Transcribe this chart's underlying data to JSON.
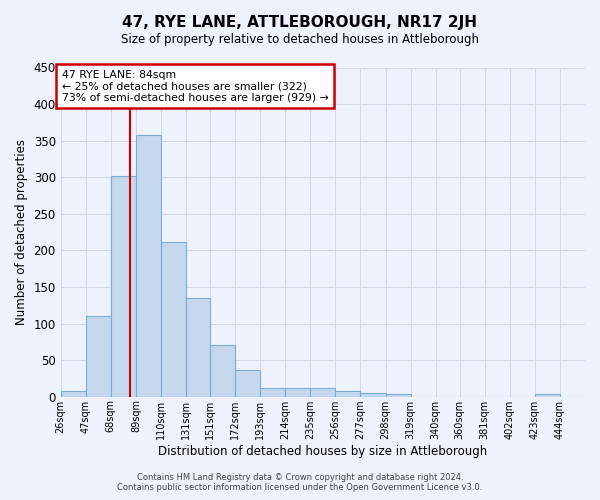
{
  "title": "47, RYE LANE, ATTLEBOROUGH, NR17 2JH",
  "subtitle": "Size of property relative to detached houses in Attleborough",
  "xlabel": "Distribution of detached houses by size in Attleborough",
  "ylabel": "Number of detached properties",
  "bin_labels": [
    "26sqm",
    "47sqm",
    "68sqm",
    "89sqm",
    "110sqm",
    "131sqm",
    "151sqm",
    "172sqm",
    "193sqm",
    "214sqm",
    "235sqm",
    "256sqm",
    "277sqm",
    "298sqm",
    "319sqm",
    "340sqm",
    "360sqm",
    "381sqm",
    "402sqm",
    "423sqm",
    "444sqm"
  ],
  "bin_edges": [
    26,
    47,
    68,
    89,
    110,
    131,
    151,
    172,
    193,
    214,
    235,
    256,
    277,
    298,
    319,
    340,
    360,
    381,
    402,
    423,
    444,
    465
  ],
  "bar_heights": [
    8,
    110,
    302,
    358,
    212,
    135,
    70,
    37,
    12,
    12,
    12,
    8,
    5,
    3,
    0,
    0,
    0,
    0,
    0,
    3,
    0
  ],
  "bar_color": "#c5d8ee",
  "bar_edgecolor": "#7aadd4",
  "property_size": 84,
  "vline_color": "#cc0000",
  "annotation_line1": "47 RYE LANE: 84sqm",
  "annotation_line2": "← 25% of detached houses are smaller (322)",
  "annotation_line3": "73% of semi-detached houses are larger (929) →",
  "annotation_box_edgecolor": "#cc0000",
  "ylim": [
    0,
    450
  ],
  "yticks": [
    0,
    50,
    100,
    150,
    200,
    250,
    300,
    350,
    400,
    450
  ],
  "footer_line1": "Contains HM Land Registry data © Crown copyright and database right 2024.",
  "footer_line2": "Contains public sector information licensed under the Open Government Licence v3.0.",
  "bg_color": "#eef2fc",
  "grid_color": "#d0d8e8"
}
